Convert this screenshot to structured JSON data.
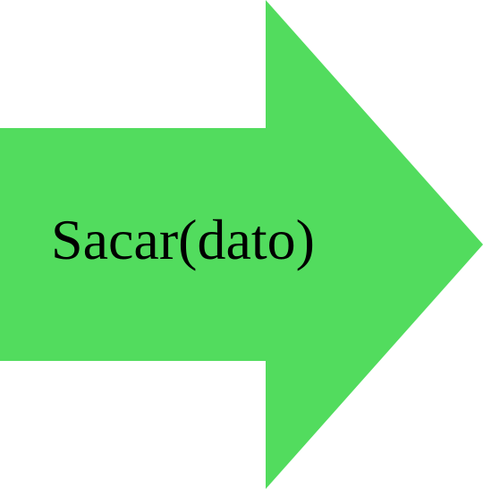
{
  "arrow": {
    "label": "Sacar(dato)",
    "fill_color": "#52dc5e",
    "direction": "right",
    "icon": "right-arrow-shape"
  }
}
